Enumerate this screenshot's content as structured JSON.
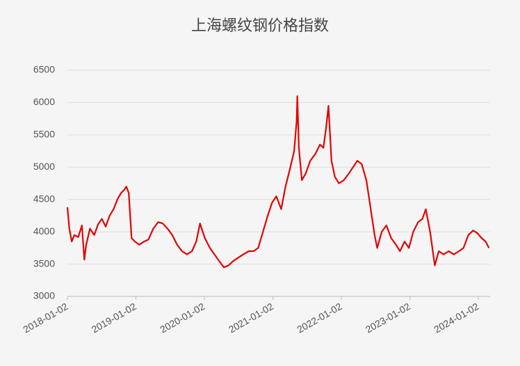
{
  "chart_data": {
    "type": "line",
    "title": "上海螺纹钢价格指数",
    "x": [
      "2018-01-02",
      "2018-01-12",
      "2018-01-25",
      "2018-02-08",
      "2018-03-01",
      "2018-03-20",
      "2018-04-02",
      "2018-04-12",
      "2018-05-02",
      "2018-05-25",
      "2018-06-15",
      "2018-07-05",
      "2018-07-25",
      "2018-08-15",
      "2018-09-05",
      "2018-09-25",
      "2018-10-15",
      "2018-11-01",
      "2018-11-12",
      "2018-11-25",
      "2018-12-10",
      "2018-12-28",
      "2019-01-20",
      "2019-02-15",
      "2019-03-10",
      "2019-04-05",
      "2019-05-01",
      "2019-05-25",
      "2019-06-20",
      "2019-07-15",
      "2019-08-10",
      "2019-09-05",
      "2019-10-01",
      "2019-10-28",
      "2019-11-20",
      "2019-12-10",
      "2020-01-05",
      "2020-02-01",
      "2020-02-25",
      "2020-03-20",
      "2020-04-15",
      "2020-05-10",
      "2020-06-05",
      "2020-07-01",
      "2020-07-28",
      "2020-08-25",
      "2020-09-20",
      "2020-10-15",
      "2020-11-10",
      "2020-12-05",
      "2020-12-28",
      "2021-01-20",
      "2021-02-15",
      "2021-03-10",
      "2021-04-05",
      "2021-04-25",
      "2021-05-08",
      "2021-05-12",
      "2021-05-20",
      "2021-06-05",
      "2021-06-25",
      "2021-07-20",
      "2021-08-15",
      "2021-09-10",
      "2021-09-28",
      "2021-10-12",
      "2021-10-25",
      "2021-11-10",
      "2021-11-28",
      "2021-12-20",
      "2022-01-15",
      "2022-02-10",
      "2022-03-05",
      "2022-03-28",
      "2022-04-20",
      "2022-05-15",
      "2022-06-05",
      "2022-06-28",
      "2022-07-12",
      "2022-08-05",
      "2022-08-30",
      "2022-09-25",
      "2022-10-20",
      "2022-11-10",
      "2022-12-05",
      "2022-12-28",
      "2023-01-20",
      "2023-02-15",
      "2023-03-10",
      "2023-03-28",
      "2023-04-20",
      "2023-05-15",
      "2023-06-05",
      "2023-07-01",
      "2023-07-28",
      "2023-08-25",
      "2023-09-20",
      "2023-10-15",
      "2023-11-10",
      "2023-12-05",
      "2023-12-28",
      "2024-01-20",
      "2024-02-10",
      "2024-02-28"
    ],
    "series": [
      {
        "name": "上海螺纹钢价格指数",
        "color": "#e60000",
        "values": [
          4380,
          4050,
          3850,
          3950,
          3920,
          4100,
          3570,
          3800,
          4050,
          3950,
          4120,
          4200,
          4080,
          4250,
          4350,
          4500,
          4600,
          4650,
          4700,
          4600,
          3900,
          3850,
          3800,
          3850,
          3880,
          4050,
          4150,
          4130,
          4050,
          3950,
          3800,
          3700,
          3650,
          3700,
          3850,
          4130,
          3900,
          3750,
          3650,
          3550,
          3450,
          3480,
          3550,
          3600,
          3650,
          3700,
          3700,
          3750,
          4000,
          4250,
          4450,
          4550,
          4350,
          4700,
          5000,
          5250,
          5700,
          6100,
          5300,
          4800,
          4900,
          5100,
          5200,
          5350,
          5300,
          5600,
          5950,
          5100,
          4850,
          4750,
          4800,
          4900,
          5000,
          5100,
          5050,
          4800,
          4400,
          3950,
          3750,
          4000,
          4100,
          3900,
          3800,
          3700,
          3850,
          3750,
          4000,
          4150,
          4200,
          4350,
          4000,
          3480,
          3700,
          3650,
          3700,
          3650,
          3700,
          3750,
          3950,
          4020,
          3980,
          3900,
          3850,
          3750
        ]
      }
    ],
    "xlim": [
      "2018-01-02",
      "2024-03-05"
    ],
    "xticks": [
      "2018-01-02",
      "2019-01-02",
      "2020-01-02",
      "2021-01-02",
      "2022-01-02",
      "2023-01-02",
      "2024-01-02"
    ],
    "ylim": [
      3000,
      6500
    ],
    "yticks": [
      3000,
      3500,
      4000,
      4500,
      5000,
      5500,
      6000,
      6500
    ],
    "grid": true
  }
}
